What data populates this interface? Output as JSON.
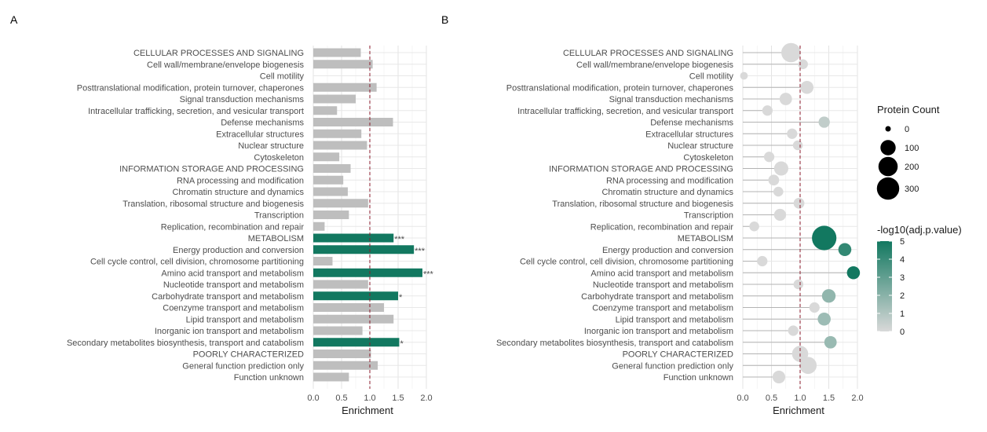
{
  "chart_data": [
    {
      "type": "bar",
      "panel_label": "A",
      "orientation": "horizontal",
      "categories": [
        "CELLULAR PROCESSES AND SIGNALING",
        "Cell wall/membrane/envelope biogenesis",
        "Cell motility",
        "Posttranslational modification, protein turnover, chaperones",
        "Signal transduction mechanisms",
        "Intracellular trafficking, secretion, and vesicular transport",
        "Defense mechanisms",
        "Extracellular structures",
        "Nuclear structure",
        "Cytoskeleton",
        "INFORMATION STORAGE AND PROCESSING",
        "RNA processing and modification",
        "Chromatin structure and dynamics",
        "Translation, ribosomal structure and biogenesis",
        "Transcription",
        "Replication, recombination and repair",
        "METABOLISM",
        "Energy production and conversion",
        "Cell cycle control, cell division, chromosome partitioning",
        "Amino acid transport and metabolism",
        "Nucleotide transport and metabolism",
        "Carbohydrate transport and metabolism",
        "Coenzyme transport and metabolism",
        "Lipid transport and metabolism",
        "Inorganic ion transport and metabolism",
        "Secondary metabolites biosynthesis, transport and catabolism",
        "POORLY CHARACTERIZED",
        "General function prediction only",
        "Function unknown"
      ],
      "values": [
        0.84,
        1.05,
        0,
        1.12,
        0.75,
        0.42,
        1.41,
        0.85,
        0.95,
        0.46,
        0.66,
        0.53,
        0.61,
        0.97,
        0.63,
        0.2,
        1.42,
        1.78,
        0.34,
        1.93,
        0.97,
        1.5,
        1.25,
        1.42,
        0.87,
        1.52,
        1.02,
        1.14,
        0.63
      ],
      "significance": [
        "",
        "",
        "",
        "",
        "",
        "",
        "",
        "",
        "",
        "",
        "",
        "",
        "",
        "",
        "",
        "",
        "***",
        "***",
        "",
        "***",
        "",
        "*",
        "",
        "",
        "",
        "*",
        "",
        "",
        ""
      ],
      "significant_color": "#127860",
      "bar_color": "#bebebe",
      "reference_line": 1.0,
      "reference_color": "#8b1a2b",
      "xlabel": "Enrichment",
      "xlim": [
        0,
        2.0
      ],
      "xticks": [
        "0.0",
        "0.5",
        "1.0",
        "1.5",
        "2.0"
      ],
      "grid": true
    },
    {
      "type": "scatter",
      "panel_label": "B",
      "style": "lollipop",
      "categories": [
        "CELLULAR PROCESSES AND SIGNALING",
        "Cell wall/membrane/envelope biogenesis",
        "Cell motility",
        "Posttranslational modification, protein turnover, chaperones",
        "Signal transduction mechanisms",
        "Intracellular trafficking, secretion, and vesicular transport",
        "Defense mechanisms",
        "Extracellular structures",
        "Nuclear structure",
        "Cytoskeleton",
        "INFORMATION STORAGE AND PROCESSING",
        "RNA processing and modification",
        "Chromatin structure and dynamics",
        "Translation, ribosomal structure and biogenesis",
        "Transcription",
        "Replication, recombination and repair",
        "METABOLISM",
        "Energy production and conversion",
        "Cell cycle control, cell division, chromosome partitioning",
        "Amino acid transport and metabolism",
        "Nucleotide transport and metabolism",
        "Carbohydrate transport and metabolism",
        "Coenzyme transport and metabolism",
        "Lipid transport and metabolism",
        "Inorganic ion transport and metabolism",
        "Secondary metabolites biosynthesis, transport and catabolism",
        "POORLY CHARACTERIZED",
        "General function prediction only",
        "Function unknown"
      ],
      "x": [
        0.84,
        1.05,
        0.02,
        1.12,
        0.75,
        0.43,
        1.42,
        0.86,
        0.96,
        0.46,
        0.67,
        0.54,
        0.62,
        0.98,
        0.65,
        0.2,
        1.42,
        1.78,
        0.34,
        1.93,
        0.97,
        1.5,
        1.25,
        1.42,
        0.88,
        1.53,
        1.0,
        1.14,
        0.63
      ],
      "protein_count": [
        200,
        20,
        5,
        60,
        50,
        25,
        35,
        25,
        20,
        25,
        80,
        30,
        20,
        30,
        45,
        20,
        380,
        60,
        25,
        60,
        20,
        70,
        25,
        60,
        25,
        50,
        120,
        140,
        55
      ],
      "neg_log10_adj_p": [
        0,
        0,
        0,
        0,
        0,
        0,
        0.6,
        0,
        0,
        0,
        0,
        0,
        0,
        0,
        0,
        0,
        5,
        4.2,
        0,
        5,
        0,
        1.8,
        0,
        1.5,
        0,
        1.6,
        0,
        0,
        0
      ],
      "reference_line": 1.0,
      "reference_color": "#8b1a2b",
      "xlabel": "Enrichment",
      "xlim": [
        0,
        2.0
      ],
      "xticks": [
        "0.0",
        "0.5",
        "1.0",
        "1.5",
        "2.0"
      ],
      "grid": true,
      "legend_size": {
        "title": "Protein Count",
        "labels": [
          "0",
          "100",
          "200",
          "300"
        ],
        "values": [
          0,
          100,
          200,
          300
        ]
      },
      "legend_color": {
        "title": "-log10(adj.p.value)",
        "labels": [
          "0",
          "1",
          "2",
          "3",
          "4",
          "5"
        ],
        "values": [
          0,
          1,
          2,
          3,
          4,
          5
        ],
        "low_color": "#d9d9d9",
        "high_color": "#127860"
      }
    }
  ]
}
